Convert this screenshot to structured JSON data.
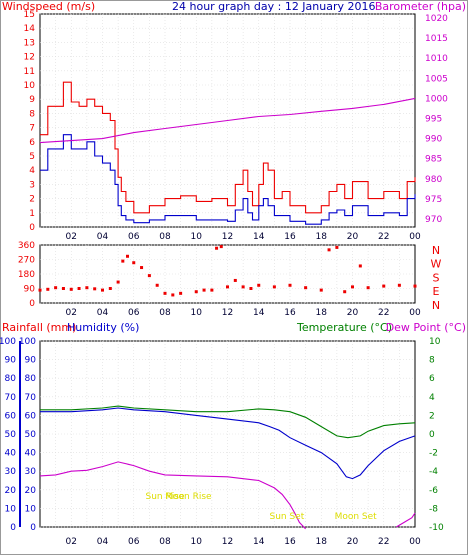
{
  "chart_data": [
    {
      "type": "line",
      "title": "24 hour graph day : 12 January 2016",
      "y_left_label": "Windspeed (m/s)",
      "y_right_label": "Barometer (hpa)",
      "x_ticks": [
        "02",
        "04",
        "06",
        "08",
        "10",
        "12",
        "14",
        "16",
        "18",
        "20",
        "22",
        "00"
      ],
      "x_range_hours": [
        0,
        24
      ],
      "y_left_ticks": [
        0,
        1,
        2,
        3,
        4,
        5,
        6,
        7,
        8,
        9,
        10,
        11,
        12,
        13,
        14,
        15
      ],
      "y_left_range": [
        0,
        15
      ],
      "y_right_ticks": [
        970,
        975,
        980,
        985,
        990,
        995,
        1000,
        1005,
        1010,
        1015,
        1020
      ],
      "y_right_range": [
        968,
        1021
      ],
      "grid": true,
      "series": [
        {
          "name": "Gust",
          "color": "#ee0000",
          "x": [
            0,
            0.5,
            1,
            1.5,
            2,
            2.5,
            3,
            3.5,
            4,
            4.5,
            4.8,
            5.0,
            5.2,
            5.5,
            6,
            7,
            8,
            9,
            10,
            11,
            12,
            12.5,
            13,
            13.3,
            13.6,
            14,
            14.3,
            14.6,
            15,
            15.5,
            16,
            17,
            18,
            18.5,
            19,
            19.5,
            20,
            21,
            22,
            23,
            23.5,
            24
          ],
          "values": [
            6.5,
            8.5,
            8.5,
            10.2,
            8.8,
            8.5,
            9.0,
            8.5,
            8.0,
            7.5,
            5.5,
            3.5,
            2.5,
            1.8,
            1.0,
            1.5,
            2.0,
            2.2,
            1.8,
            2.0,
            1.5,
            3.0,
            4.0,
            2.5,
            1.5,
            3.0,
            4.5,
            4.0,
            2.0,
            2.5,
            1.5,
            1.0,
            1.5,
            2.5,
            3.0,
            2.0,
            3.2,
            2.0,
            2.5,
            2.0,
            3.2,
            3.5
          ]
        },
        {
          "name": "Windspeed",
          "color": "#0000cc",
          "x": [
            0,
            0.5,
            1,
            1.5,
            2,
            2.5,
            3,
            3.5,
            4,
            4.5,
            4.8,
            5.0,
            5.2,
            5.5,
            6,
            7,
            8,
            9,
            10,
            11,
            12,
            12.5,
            13,
            13.3,
            13.6,
            14,
            14.3,
            14.6,
            15,
            15.5,
            16,
            17,
            18,
            18.5,
            19,
            19.5,
            20,
            21,
            22,
            23,
            23.5,
            24
          ],
          "values": [
            4.0,
            5.5,
            5.5,
            6.5,
            5.5,
            5.5,
            6.0,
            5.0,
            4.5,
            4.0,
            3.0,
            1.5,
            0.8,
            0.5,
            0.3,
            0.5,
            0.8,
            0.8,
            0.5,
            0.5,
            0.4,
            1.2,
            2.0,
            1.0,
            0.5,
            1.5,
            2.0,
            1.5,
            0.8,
            0.8,
            0.4,
            0.2,
            0.5,
            1.0,
            1.2,
            0.8,
            1.5,
            0.8,
            1.0,
            0.8,
            2.0,
            2.3
          ]
        },
        {
          "name": "Barometer",
          "color": "#cc00cc",
          "axis": "right",
          "x": [
            0,
            2,
            4,
            6,
            8,
            10,
            12,
            14,
            16,
            18,
            20,
            22,
            24
          ],
          "values": [
            989,
            989.5,
            990,
            991.5,
            992.5,
            993.5,
            994.5,
            995.5,
            996,
            996.8,
            997.5,
            998.5,
            1000
          ]
        }
      ]
    },
    {
      "type": "scatter",
      "y_right_labels": [
        "N",
        "W",
        "S",
        "E",
        "N"
      ],
      "y_left_ticks": [
        0,
        90,
        180,
        270,
        360
      ],
      "y_range": [
        0,
        360
      ],
      "x_ticks": [
        "02",
        "04",
        "06",
        "08",
        "10",
        "12",
        "14",
        "16",
        "18",
        "20",
        "22",
        "00"
      ],
      "series": [
        {
          "name": "Wind direction",
          "color": "#ee0000",
          "x": [
            0,
            0.5,
            1,
            1.5,
            2,
            2.5,
            3,
            3.5,
            4,
            4.5,
            5,
            5.3,
            5.6,
            6,
            6.5,
            7,
            7.5,
            8,
            8.5,
            9,
            10,
            10.5,
            11,
            11.3,
            11.6,
            12,
            12.5,
            13,
            13.5,
            14,
            15,
            16,
            17,
            18,
            18.5,
            19,
            19.5,
            20,
            20.5,
            21,
            22,
            23,
            24
          ],
          "values": [
            80,
            85,
            95,
            90,
            85,
            90,
            95,
            88,
            80,
            90,
            130,
            260,
            290,
            250,
            220,
            170,
            110,
            60,
            50,
            60,
            70,
            80,
            80,
            340,
            350,
            100,
            140,
            100,
            90,
            110,
            100,
            110,
            95,
            80,
            330,
            345,
            70,
            100,
            230,
            95,
            105,
            110,
            105
          ]
        }
      ]
    },
    {
      "type": "line",
      "y_left_label_1": "Rainfall (mm)",
      "y_left_label_2": "Humidity (%)",
      "y_right_label_1": "Temperature (°C)",
      "y_right_label_2": "Dew Point (°C)",
      "x_ticks": [
        "02",
        "04",
        "06",
        "08",
        "10",
        "12",
        "14",
        "16",
        "18",
        "20",
        "22",
        "00"
      ],
      "y_left_ticks": [
        0,
        10,
        20,
        30,
        40,
        50,
        60,
        70,
        80,
        90,
        100
      ],
      "y_left_range": [
        0,
        100
      ],
      "y_right_ticks": [
        -10,
        -8,
        -6,
        -4,
        -2,
        0,
        2,
        4,
        6,
        8,
        10
      ],
      "y_right_range": [
        -10,
        10
      ],
      "annotations": [
        {
          "text": "Sun Rise",
          "hour": 8.0
        },
        {
          "text": "Sun Set",
          "hour": 15.8
        },
        {
          "text": "Moon Rise",
          "hour": 9.5
        },
        {
          "text": "Moon Set",
          "hour": 20.2
        }
      ],
      "series": [
        {
          "name": "Temperature",
          "color": "#008000",
          "axis": "right",
          "x": [
            0,
            2,
            4,
            5,
            6,
            8,
            10,
            12,
            14,
            15,
            16,
            17,
            18,
            19,
            19.7,
            20.5,
            21,
            22,
            23,
            24
          ],
          "values": [
            2.6,
            2.6,
            2.8,
            3.0,
            2.8,
            2.6,
            2.4,
            2.4,
            2.7,
            2.6,
            2.4,
            1.8,
            0.8,
            -0.2,
            -0.4,
            -0.2,
            0.3,
            0.9,
            1.1,
            1.2
          ]
        },
        {
          "name": "Humidity",
          "color": "#0000cc",
          "axis": "left",
          "x": [
            0,
            2,
            4,
            5,
            6,
            8,
            10,
            12,
            14,
            14.7,
            15.3,
            16,
            17,
            18,
            19,
            19.6,
            20,
            20.5,
            21,
            22,
            23,
            24
          ],
          "values": [
            62,
            62,
            63,
            64,
            63,
            62,
            60,
            58,
            56,
            54,
            52,
            48,
            44,
            40,
            34,
            27,
            26,
            28,
            33,
            41,
            46,
            49
          ]
        },
        {
          "name": "Dew Point",
          "color": "#cc00cc",
          "axis": "right",
          "x": [
            0,
            1,
            2,
            3,
            4,
            5,
            6,
            7,
            8,
            10,
            12,
            14,
            15,
            15.5,
            16,
            16.3,
            16.6,
            17
          ],
          "values": [
            -4.5,
            -4.4,
            -4.0,
            -3.9,
            -3.5,
            -3.0,
            -3.4,
            -4.0,
            -4.4,
            -4.5,
            -4.6,
            -5.0,
            -5.8,
            -6.5,
            -7.6,
            -8.5,
            -9.5,
            -10.2
          ]
        },
        {
          "name": "Dew Point",
          "color": "#cc00cc",
          "axis": "right",
          "x": [
            22.8,
            23.3,
            23.8,
            24
          ],
          "values": [
            -10.0,
            -9.5,
            -9.0,
            -8.5
          ]
        }
      ]
    }
  ]
}
